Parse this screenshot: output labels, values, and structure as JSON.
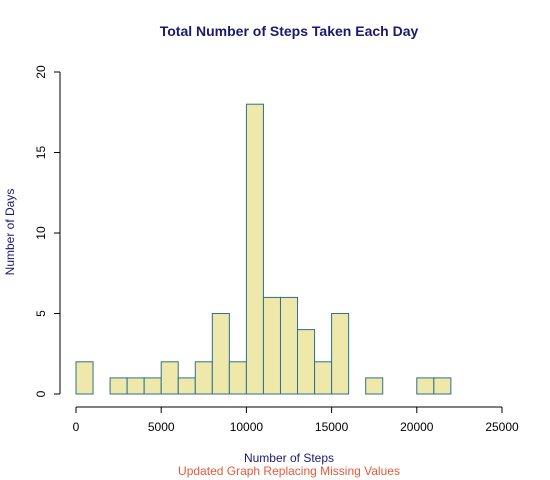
{
  "chart_data": {
    "type": "bar",
    "subtype": "histogram",
    "title": "Total Number of Steps Taken Each Day",
    "xlabel": "Number of Steps",
    "ylabel": "Number of Days",
    "subtitle": "Updated Graph Replacing Missing Values",
    "xlim": [
      0,
      25000
    ],
    "ylim": [
      0,
      20
    ],
    "x_ticks": [
      0,
      5000,
      10000,
      15000,
      20000,
      25000
    ],
    "y_ticks": [
      0,
      5,
      10,
      15,
      20
    ],
    "bins": [
      {
        "start": 0,
        "end": 1000,
        "count": 2
      },
      {
        "start": 1000,
        "end": 2000,
        "count": 0
      },
      {
        "start": 2000,
        "end": 3000,
        "count": 1
      },
      {
        "start": 3000,
        "end": 4000,
        "count": 1
      },
      {
        "start": 4000,
        "end": 5000,
        "count": 1
      },
      {
        "start": 5000,
        "end": 6000,
        "count": 2
      },
      {
        "start": 6000,
        "end": 7000,
        "count": 1
      },
      {
        "start": 7000,
        "end": 8000,
        "count": 2
      },
      {
        "start": 8000,
        "end": 9000,
        "count": 5
      },
      {
        "start": 9000,
        "end": 10000,
        "count": 2
      },
      {
        "start": 10000,
        "end": 11000,
        "count": 18
      },
      {
        "start": 11000,
        "end": 12000,
        "count": 6
      },
      {
        "start": 12000,
        "end": 13000,
        "count": 6
      },
      {
        "start": 13000,
        "end": 14000,
        "count": 4
      },
      {
        "start": 14000,
        "end": 15000,
        "count": 2
      },
      {
        "start": 15000,
        "end": 16000,
        "count": 5
      },
      {
        "start": 16000,
        "end": 17000,
        "count": 0
      },
      {
        "start": 17000,
        "end": 18000,
        "count": 1
      },
      {
        "start": 18000,
        "end": 19000,
        "count": 0
      },
      {
        "start": 19000,
        "end": 20000,
        "count": 0
      },
      {
        "start": 20000,
        "end": 21000,
        "count": 1
      },
      {
        "start": 21000,
        "end": 22000,
        "count": 1
      }
    ],
    "bar_fill": "#eee8aa",
    "bar_border": "#2f6f8f",
    "title_color": "#191970",
    "subtitle_color": "#e8583a",
    "grid": false,
    "legend": "none"
  }
}
